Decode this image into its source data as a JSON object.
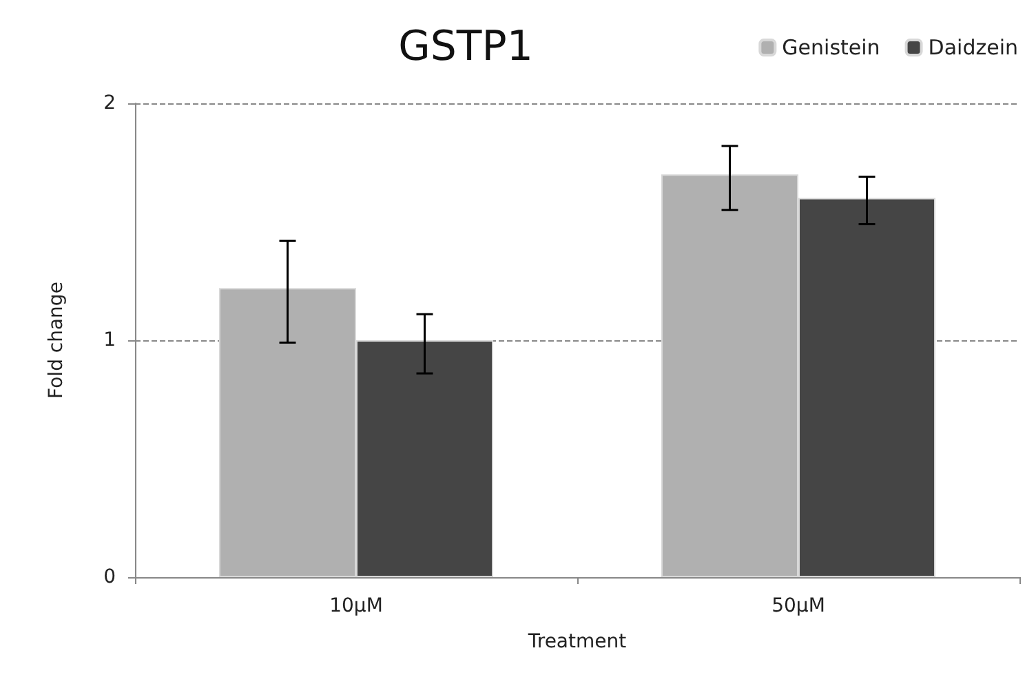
{
  "chart_data": {
    "type": "bar",
    "title": "GSTP1",
    "xlabel": "Treatment",
    "ylabel": "Fold change",
    "categories": [
      "10µM",
      "50µM"
    ],
    "series": [
      {
        "name": "Genistein",
        "color": "#b0b0b0",
        "values": [
          1.22,
          1.7
        ],
        "errors": [
          [
            0.99,
            1.42
          ],
          [
            1.55,
            1.82
          ]
        ]
      },
      {
        "name": "Daidzein",
        "color": "#454545",
        "values": [
          1.0,
          1.6
        ],
        "errors": [
          [
            0.86,
            1.11
          ],
          [
            1.49,
            1.69
          ]
        ]
      }
    ],
    "ylim": [
      0,
      2
    ],
    "yticks": [
      0,
      1,
      2
    ],
    "grid": "y",
    "legend": "top right"
  }
}
